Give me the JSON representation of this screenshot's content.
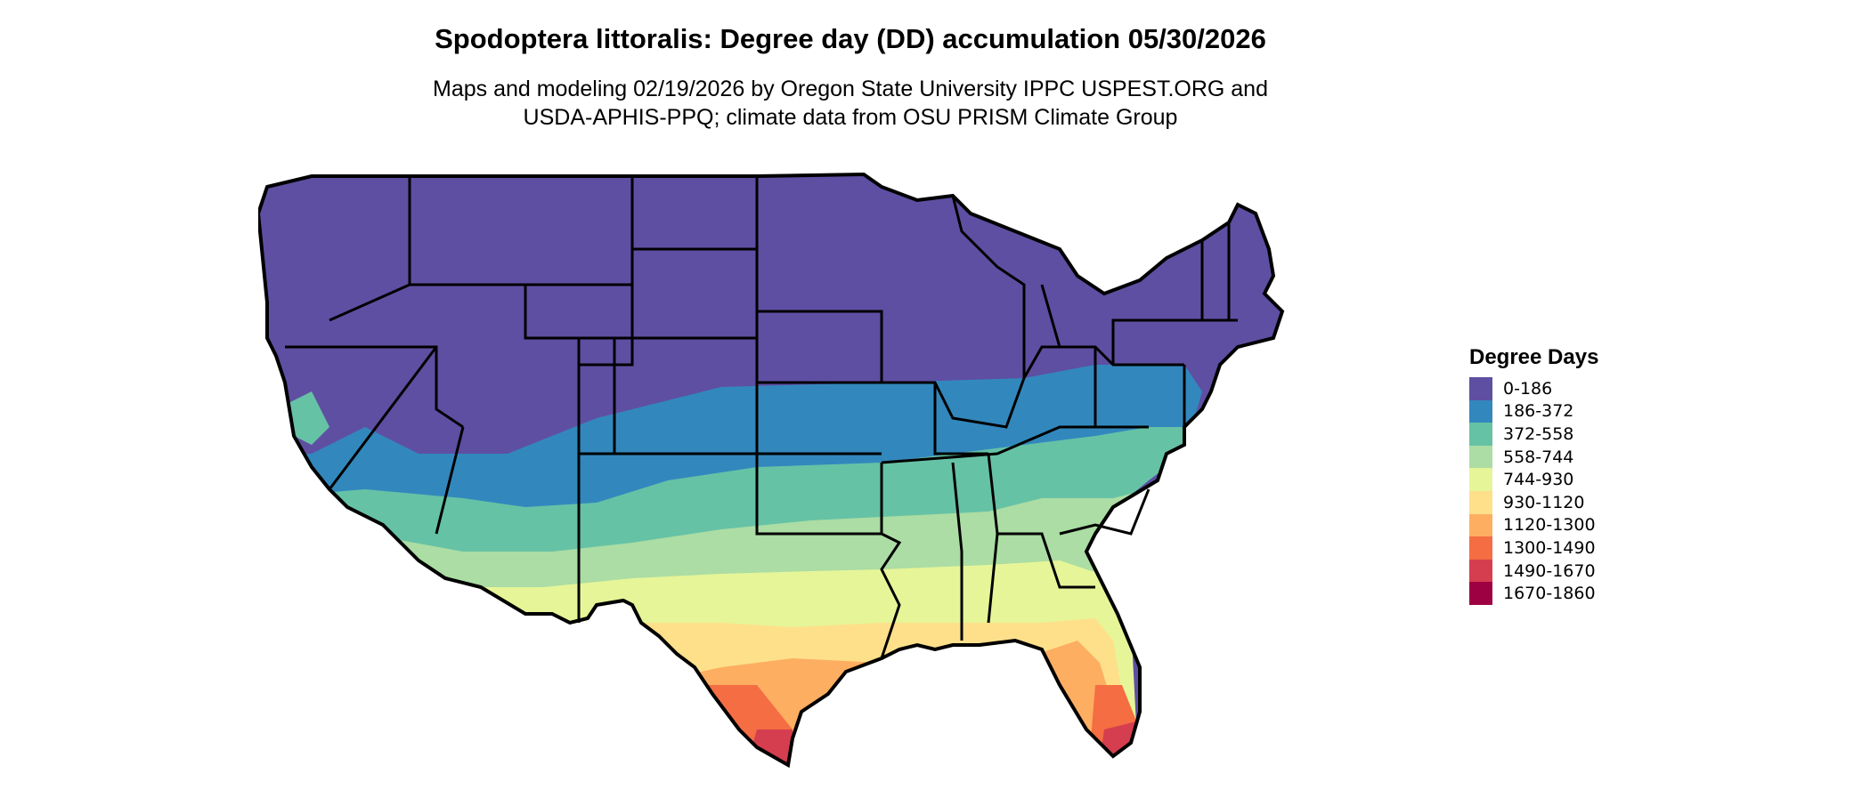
{
  "title": "Spodoptera littoralis: Degree day (DD) accumulation 05/30/2026",
  "subtitle_line1": "Maps and modeling 02/19/2026 by Oregon State University IPPC USPEST.ORG and",
  "subtitle_line2": "USDA-APHIS-PPQ; climate data from OSU PRISM Climate Group",
  "legend": {
    "title": "Degree Days",
    "items": [
      {
        "label": "0-186",
        "color": "#5E4FA2"
      },
      {
        "label": "186-372",
        "color": "#3288BD"
      },
      {
        "label": "372-558",
        "color": "#66C2A5"
      },
      {
        "label": "558-744",
        "color": "#ABDDA4"
      },
      {
        "label": "744-930",
        "color": "#E6F598"
      },
      {
        "label": "930-1120",
        "color": "#FEE08B"
      },
      {
        "label": "1120-1300",
        "color": "#FDAE61"
      },
      {
        "label": "1300-1490",
        "color": "#F46D43"
      },
      {
        "label": "1490-1670",
        "color": "#D53E4F"
      },
      {
        "label": "1670-1860",
        "color": "#9E0142"
      }
    ]
  }
}
